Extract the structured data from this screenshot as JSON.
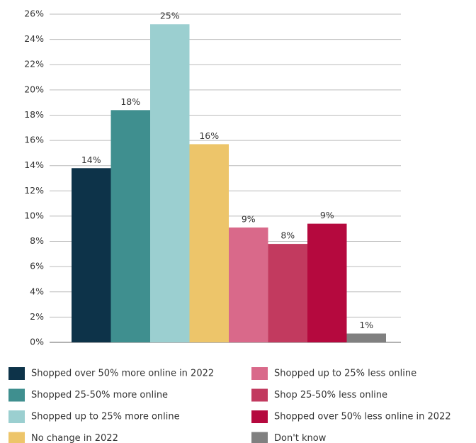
{
  "chart_data": {
    "type": "bar",
    "categories": [
      "Shopped over 50% more online in 2022",
      "Shopped 25-50% more online",
      "Shopped up to 25% more online",
      "No change in 2022",
      "Shopped up to 25% less online",
      "Shop 25-50% less online",
      "Shopped over 50% less online in 2022",
      "Don't know"
    ],
    "values": [
      13.8,
      18.4,
      25.2,
      15.7,
      9.1,
      7.8,
      9.4,
      0.7
    ],
    "value_labels": [
      "14%",
      "18%",
      "25%",
      "16%",
      "9%",
      "8%",
      "9%",
      "1%"
    ],
    "colors": [
      "#0d3349",
      "#3f8f8f",
      "#9bcfd0",
      "#edc56a",
      "#d9698a",
      "#c23a5f",
      "#b5093e",
      "#808080"
    ],
    "ylim": [
      0,
      26
    ],
    "yticks": [
      {
        "value": 0,
        "label": "0%"
      },
      {
        "value": 2,
        "label": "2%"
      },
      {
        "value": 4,
        "label": "4%"
      },
      {
        "value": 6,
        "label": "6%"
      },
      {
        "value": 8,
        "label": "8%"
      },
      {
        "value": 10,
        "label": "10%"
      },
      {
        "value": 12,
        "label": "12%"
      },
      {
        "value": 14,
        "label": "14%"
      },
      {
        "value": 16,
        "label": "16%"
      },
      {
        "value": 18,
        "label": "18%"
      },
      {
        "value": 20,
        "label": "20%"
      },
      {
        "value": 22,
        "label": "22%"
      },
      {
        "value": 24,
        "label": "24%"
      },
      {
        "value": 26,
        "label": "26%"
      }
    ],
    "grid": true
  }
}
